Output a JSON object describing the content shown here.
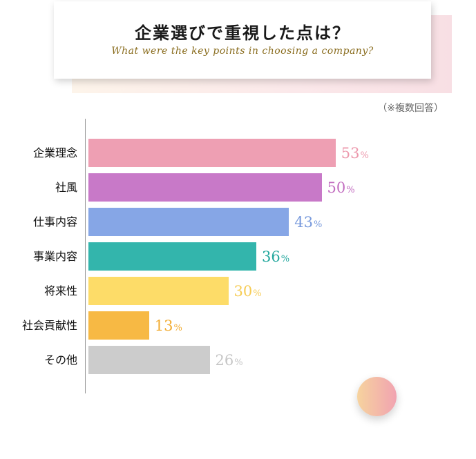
{
  "header": {
    "title_jp": "企業選びで重視した点は？",
    "title_en": "What were the key points in choosing a company?"
  },
  "note": "（※複数回答）",
  "chart_data": {
    "type": "bar",
    "orientation": "horizontal",
    "categories": [
      "企業理念",
      "社風",
      "仕事内容",
      "事業内容",
      "将来性",
      "社会貢献性",
      "その他"
    ],
    "values": [
      53,
      50,
      43,
      36,
      30,
      13,
      26
    ],
    "unit": "%",
    "colors": [
      "#ee9fb3",
      "#c879c8",
      "#86a6e6",
      "#33b5ac",
      "#fddc68",
      "#f7b944",
      "#cccccc"
    ],
    "value_colors": [
      "#ec97ab",
      "#c26dc0",
      "#7799dc",
      "#24a89e",
      "#f6cc55",
      "#f2ad34",
      "#c6c6c6"
    ],
    "xlim": [
      0,
      100
    ],
    "grid": false,
    "legend": "none"
  }
}
